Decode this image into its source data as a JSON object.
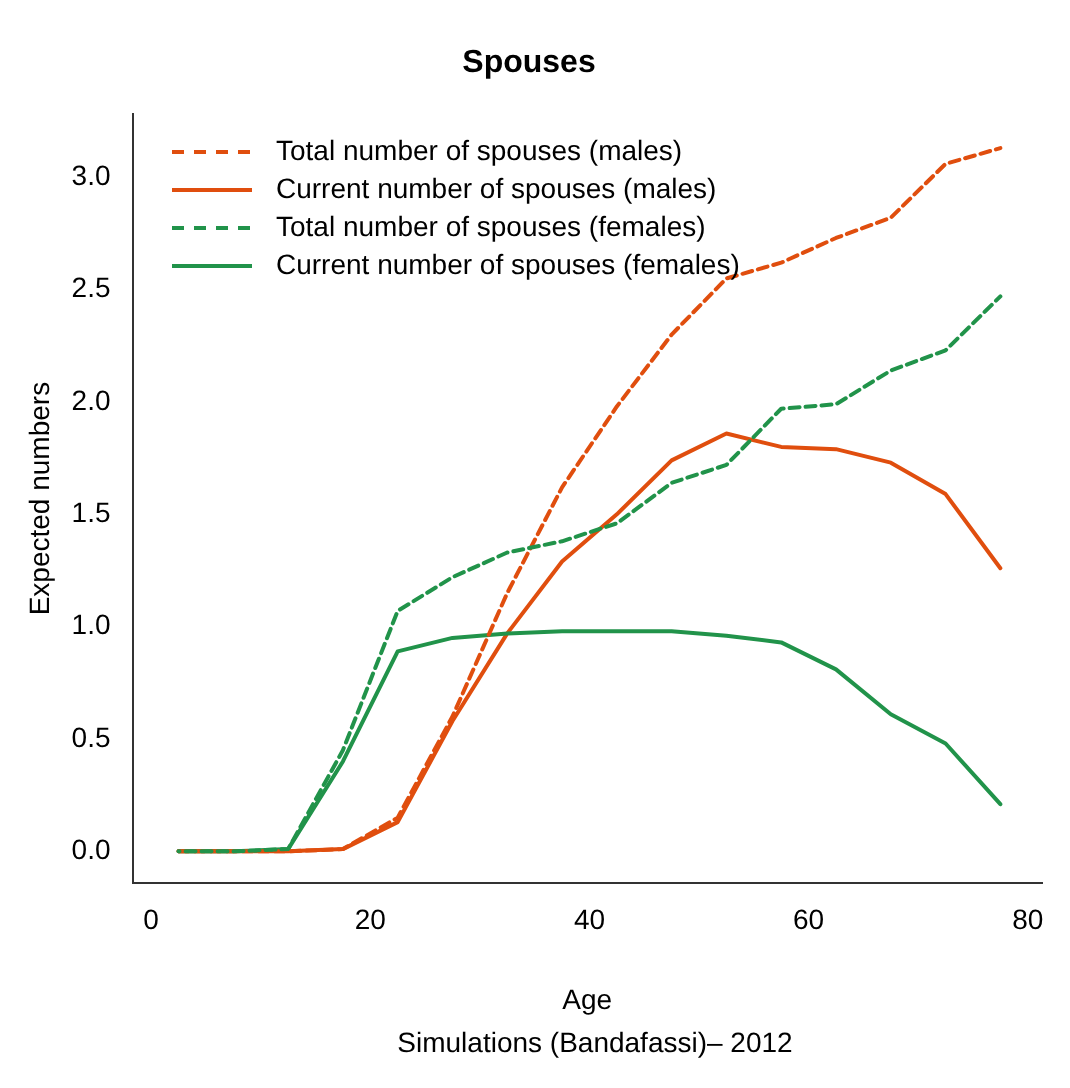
{
  "chart_data": {
    "type": "line",
    "title": "Spouses",
    "xlabel": "Age",
    "ylabel": "Expected numbers",
    "annotations": [
      "Simulations (Bandafassi)– 2012"
    ],
    "x": [
      2.5,
      7.5,
      12.5,
      17.5,
      22.5,
      27.5,
      32.5,
      37.5,
      42.5,
      47.5,
      52.5,
      57.5,
      62.5,
      67.5,
      72.5,
      77.5
    ],
    "series": [
      {
        "name": "Total number of spouses (males)",
        "color": "#e04e0e",
        "line_style": "dashed",
        "values": [
          0,
          0,
          0,
          0.01,
          0.15,
          0.6,
          1.15,
          1.62,
          1.98,
          2.3,
          2.55,
          2.62,
          2.73,
          2.82,
          3.06,
          3.13
        ]
      },
      {
        "name": "Current number of spouses (males)",
        "color": "#e04e0e",
        "line_style": "solid",
        "values": [
          0,
          0,
          0,
          0.01,
          0.13,
          0.58,
          0.97,
          1.29,
          1.5,
          1.74,
          1.86,
          1.8,
          1.79,
          1.73,
          1.59,
          1.26
        ]
      },
      {
        "name": "Total number of spouses (females)",
        "color": "#21934a",
        "line_style": "dashed",
        "values": [
          0,
          0,
          0.01,
          0.45,
          1.07,
          1.22,
          1.33,
          1.38,
          1.46,
          1.64,
          1.72,
          1.97,
          1.99,
          2.14,
          2.23,
          2.47
        ]
      },
      {
        "name": "Current number of spouses (females)",
        "color": "#21934a",
        "line_style": "solid",
        "values": [
          0,
          0,
          0.01,
          0.4,
          0.89,
          0.95,
          0.97,
          0.98,
          0.98,
          0.98,
          0.96,
          0.93,
          0.81,
          0.61,
          0.48,
          0.21
        ]
      }
    ],
    "xlim": [
      -1.7,
      81.3
    ],
    "xticks": [
      0,
      20,
      40,
      60,
      80
    ],
    "ylim": [
      -0.14,
      3.28
    ],
    "yticks": [
      {
        "value": 0,
        "label": "0.0"
      },
      0.5,
      {
        "value": 1,
        "label": "1.0"
      },
      1.5,
      {
        "value": 2,
        "label": "2.0"
      },
      2.5,
      {
        "value": 3,
        "label": "3.0"
      }
    ],
    "grid": false,
    "legend": "top left",
    "marker": "none"
  }
}
